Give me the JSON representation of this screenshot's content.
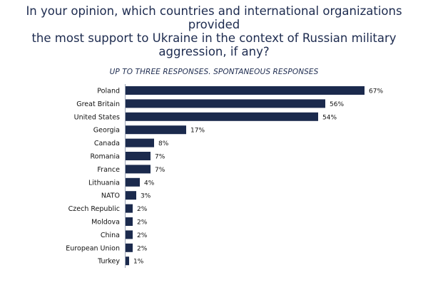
{
  "title_lines": [
    "In your opinion, which countries and international organizations provided",
    "the most support to Ukraine in the context of Russian military",
    "aggression, if any?"
  ],
  "subtitle": "UP TO THREE RESPONSES. SPONTANEOUS RESPONSES",
  "colors": {
    "bar": "#1b2a4d",
    "title": "#1d2b4f"
  },
  "chart_data": {
    "type": "bar",
    "orientation": "horizontal",
    "title": "In your opinion, which countries and international organizations provided the most support to Ukraine in the context of Russian military aggression, if any?",
    "subtitle": "UP TO THREE RESPONSES. SPONTANEOUS RESPONSES",
    "categories": [
      "Poland",
      "Great Britain",
      "United States",
      "Georgia",
      "Canada",
      "Romania",
      "France",
      "Lithuania",
      "NATO",
      "Czech Republic",
      "Moldova",
      "China",
      "European Union",
      "Turkey"
    ],
    "values": [
      67,
      56,
      54,
      17,
      8,
      7,
      7,
      4,
      3,
      2,
      2,
      2,
      2,
      1
    ],
    "value_labels": [
      "67%",
      "56%",
      "54%",
      "17%",
      "8%",
      "7%",
      "7%",
      "4%",
      "3%",
      "2%",
      "2%",
      "2%",
      "2%",
      "1%"
    ],
    "unit": "%",
    "xlabel": "",
    "ylabel": "",
    "xlim": [
      0,
      67
    ],
    "grid": false,
    "legend": "none"
  }
}
